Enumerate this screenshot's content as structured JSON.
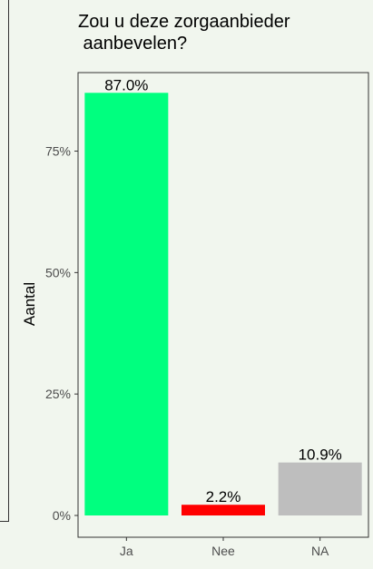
{
  "chart_data": {
    "type": "bar",
    "title": "Zou u deze zorgaanbieder\n aanbevelen?",
    "xlabel": "",
    "ylabel": "Aantal",
    "categories": [
      "Ja",
      "Nee",
      "NA"
    ],
    "values": [
      87.0,
      2.2,
      10.9
    ],
    "data_labels": [
      "87.0%",
      "2.2%",
      "10.9%"
    ],
    "colors": [
      "#00ff7f",
      "#ff0000",
      "#bebebe"
    ],
    "ylim": [
      0,
      88
    ],
    "yticks": [
      0,
      25,
      50,
      75
    ],
    "ytick_labels": [
      "0%",
      "25%",
      "50%",
      "75%"
    ],
    "grid": false,
    "legend": "none",
    "panel_border_color": "#333333",
    "background": "#f1f6ee"
  }
}
